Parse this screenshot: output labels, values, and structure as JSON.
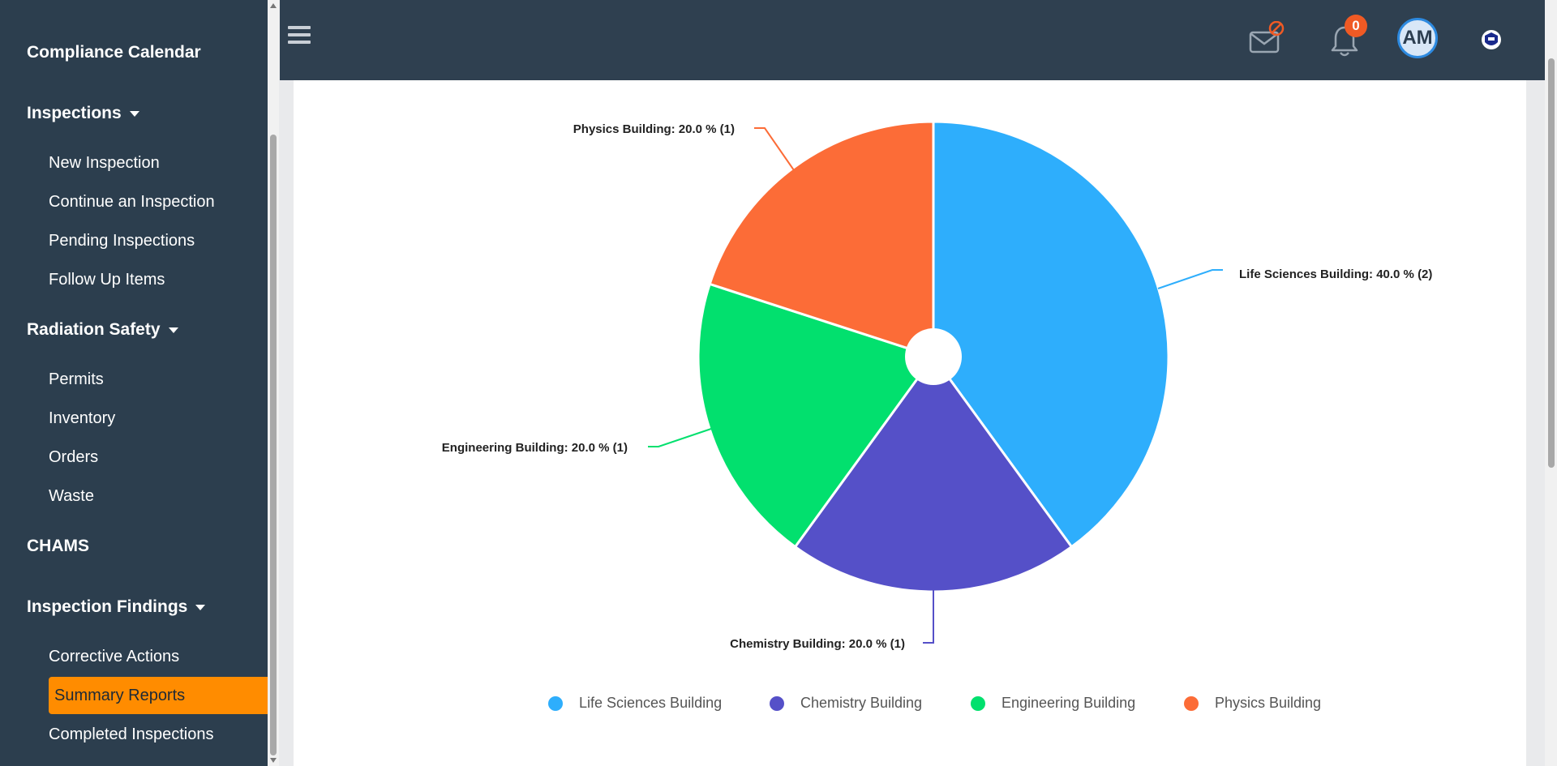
{
  "sidebar": {
    "headings": {
      "compliance_calendar": "Compliance Calendar",
      "inspections": "Inspections",
      "radiation_safety": "Radiation Safety",
      "chams": "CHAMS",
      "inspection_findings": "Inspection Findings"
    },
    "inspections_items": [
      "New Inspection",
      "Continue an Inspection",
      "Pending Inspections",
      "Follow Up Items"
    ],
    "radiation_items": [
      "Permits",
      "Inventory",
      "Orders",
      "Waste"
    ],
    "findings_items": [
      "Corrective Actions",
      "Summary Reports",
      "Completed Inspections"
    ],
    "active_item": "Summary Reports"
  },
  "topbar": {
    "notification_count": "0",
    "avatar_initials": "AM"
  },
  "colors": {
    "sidebar_bg": "#2c3e4e",
    "topbar_bg": "#2f4050",
    "active_item": "#ff8c00"
  },
  "chart_data": {
    "type": "pie",
    "series": [
      {
        "name": "Life Sciences Building",
        "percent": 40.0,
        "count": 2,
        "color": "#2eaefc",
        "label": "Life Sciences Building: 40.0 % (2)"
      },
      {
        "name": "Chemistry Building",
        "percent": 20.0,
        "count": 1,
        "color": "#5550c8",
        "label": "Chemistry Building: 20.0 % (1)"
      },
      {
        "name": "Engineering Building",
        "percent": 20.0,
        "count": 1,
        "color": "#02e06e",
        "label": "Engineering Building: 20.0 % (1)"
      },
      {
        "name": "Physics Building",
        "percent": 20.0,
        "count": 1,
        "color": "#fc6c37",
        "label": "Physics Building: 20.0 % (1)"
      }
    ],
    "legend_position": "bottom"
  }
}
